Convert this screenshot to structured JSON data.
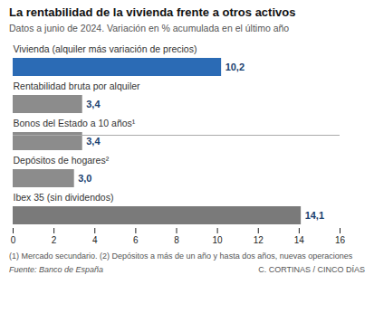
{
  "chart_data": {
    "type": "bar",
    "orientation": "horizontal",
    "title": "La rentabilidad de la vivienda frente a otros activos",
    "subtitle": "Datos a  junio de 2024. Variación en % acumulada en el último año",
    "categories": [
      "Vivienda (alquiler más variación de precios)",
      "Rentabilidad bruta por alquiler",
      "Bonos del Estado a 10 años¹",
      "Depósitos de hogares²",
      "Ibex 35 (sin dividendos)"
    ],
    "values": [
      10.2,
      3.4,
      3.4,
      3.0,
      14.1
    ],
    "value_labels": [
      "10,2",
      "3,4",
      "3,4",
      "3,0",
      "14,1"
    ],
    "data_labels": true,
    "colors": [
      "#2b6bb5",
      "#8c8c8c",
      "#8c8c8c",
      "#8c8c8c",
      "#7a7a7a"
    ],
    "xlim": [
      0,
      16
    ],
    "xticks": [
      0,
      2,
      4,
      6,
      8,
      10,
      12,
      14,
      16
    ],
    "grid": false,
    "tick_labels": "x",
    "footnote": "(1) Mercado secundario. (2) Depósitos a más de un año y hasta dos años, nuevas operaciones",
    "sources": [
      "Fuente: Banco de España",
      "C. CORTINAS / CINCO DÍAS"
    ]
  }
}
